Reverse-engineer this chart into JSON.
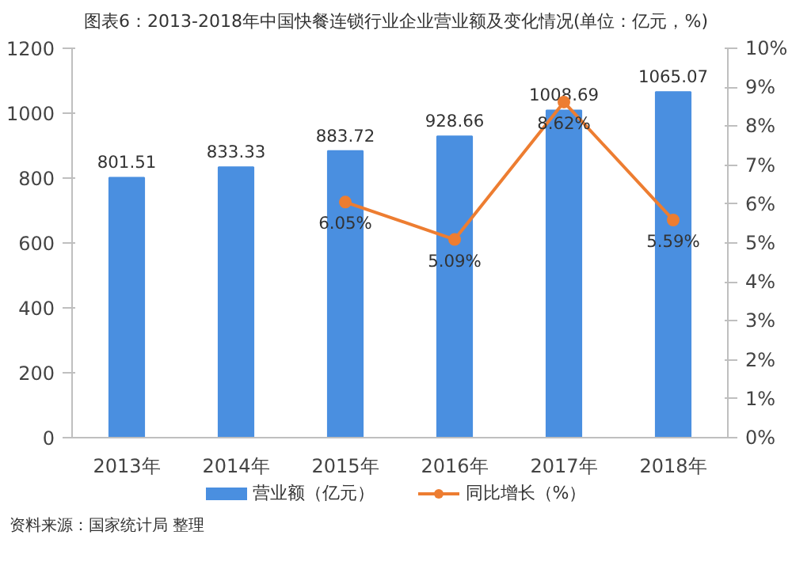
{
  "chart_data": {
    "type": "bar",
    "title": "图表6：2013-2018年中国快餐连锁行业企业营业额及变化情况(单位：亿元，%)",
    "categories": [
      "2013年",
      "2014年",
      "2015年",
      "2016年",
      "2017年",
      "2018年"
    ],
    "series": [
      {
        "name": "营业额（亿元）",
        "color": "#4a8fe0",
        "values": [
          801.51,
          833.33,
          883.72,
          928.66,
          1008.69,
          1065.07
        ],
        "value_labels": [
          "801.51",
          "833.33",
          "883.72",
          "928.66",
          "1008.69",
          "1065.07"
        ]
      },
      {
        "name": "同比增长（%）",
        "type": "line",
        "axis": "y2",
        "color": "#ed7d31",
        "marker": "circle",
        "values": [
          null,
          null,
          6.05,
          5.09,
          8.62,
          5.59
        ],
        "value_labels": [
          null,
          null,
          "6.05%",
          "5.09%",
          "8.62%",
          "5.59%"
        ]
      }
    ],
    "ylim": [
      0,
      1200
    ],
    "yticks": [
      0,
      200,
      400,
      600,
      800,
      1000,
      1200
    ],
    "y2lim": [
      0,
      10
    ],
    "y2ticks": [
      {
        "value": 0,
        "label": "0%"
      },
      {
        "value": 1,
        "label": "1%"
      },
      {
        "value": 2,
        "label": "2%"
      },
      {
        "value": 3,
        "label": "3%"
      },
      {
        "value": 4,
        "label": "4%"
      },
      {
        "value": 5,
        "label": "5%"
      },
      {
        "value": 6,
        "label": "6%"
      },
      {
        "value": 7,
        "label": "7%"
      },
      {
        "value": 8,
        "label": "8%"
      },
      {
        "value": 9,
        "label": "9%"
      },
      {
        "value": 10,
        "label": "10%"
      }
    ],
    "legend": "bottom",
    "grid": false,
    "annotations": [
      "资料来源：国家统计局 整理"
    ]
  }
}
